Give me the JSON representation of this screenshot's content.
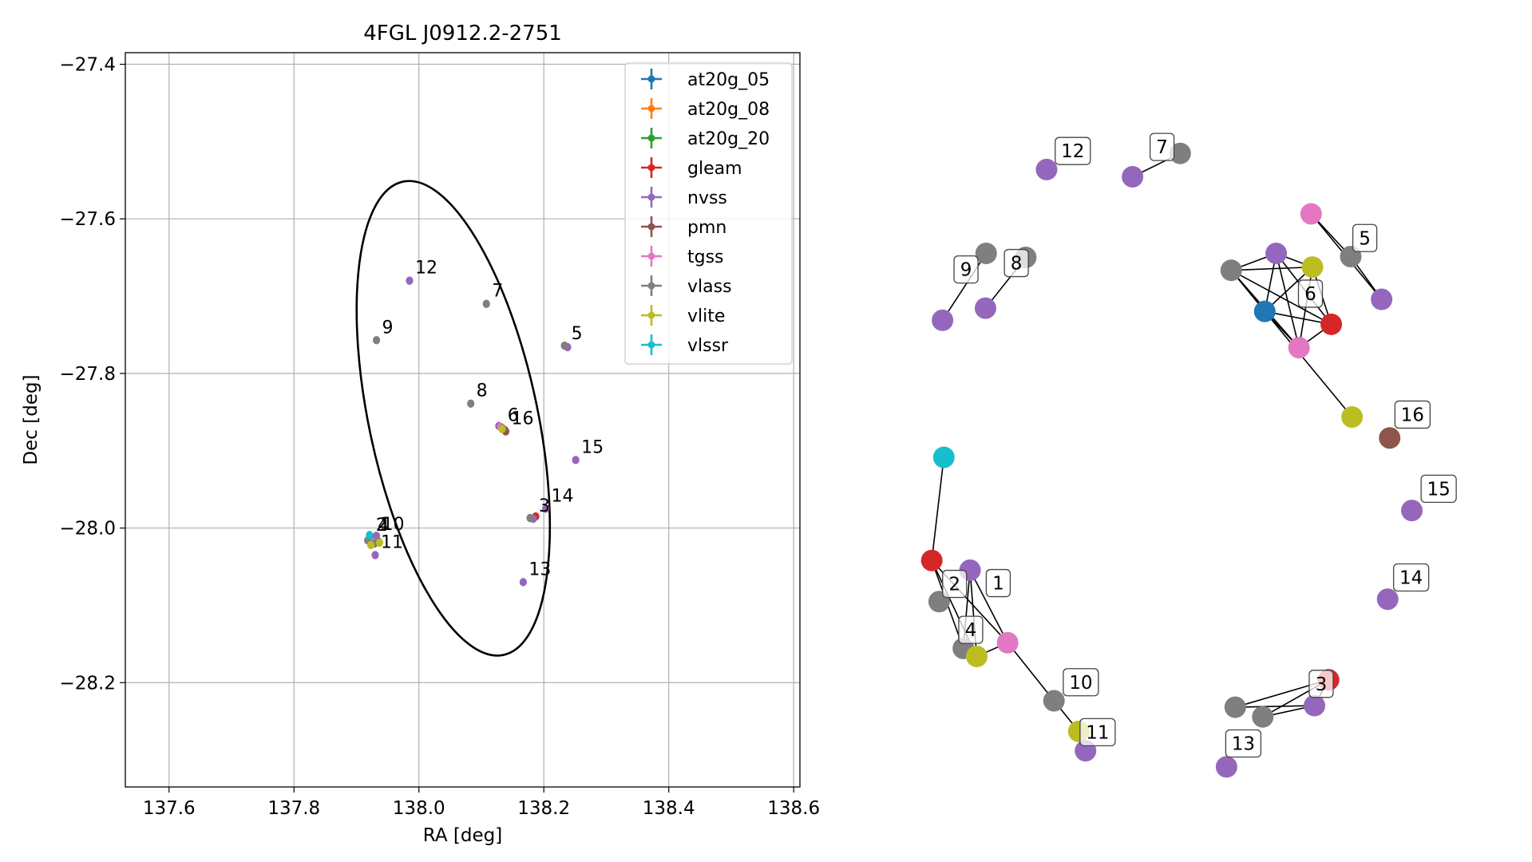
{
  "chart_data": [
    {
      "type": "scatter",
      "title": "4FGL J0912.2-2751",
      "xlabel": "RA [deg]",
      "ylabel": "Dec [deg]",
      "xlim": [
        137.53,
        138.61
      ],
      "ylim": [
        -28.335,
        -27.385
      ],
      "xticks": [
        "137.6",
        "137.8",
        "138.0",
        "138.2",
        "138.4",
        "138.6"
      ],
      "xtick_values": [
        137.6,
        137.8,
        138.0,
        138.2,
        138.4,
        138.6
      ],
      "yticks": [
        "−27.4",
        "−27.6",
        "−27.8",
        "−28.0",
        "−28.2"
      ],
      "ytick_values": [
        -27.4,
        -27.6,
        -27.8,
        -28.0,
        -28.2
      ],
      "grid": true,
      "legend_position": "top-right",
      "ellipse": {
        "center": [
          138.055,
          -27.858
        ],
        "ra_semi_axis": 0.135,
        "dec_semi_axis": 0.313,
        "angle_deg": -12
      },
      "series": [
        {
          "name": "at20g_05",
          "color": "#1f77b4",
          "points": [
            [
              137.923,
              -28.012
            ]
          ]
        },
        {
          "name": "at20g_08",
          "color": "#ff7f0e",
          "points": [
            [
              137.926,
              -28.014
            ]
          ]
        },
        {
          "name": "at20g_20",
          "color": "#2ca02c",
          "points": [
            [
              137.925,
              -28.013
            ]
          ]
        },
        {
          "name": "gleam",
          "color": "#d62728",
          "points": [
            [
              137.927,
              -28.015
            ],
            [
              138.137,
              -27.873
            ],
            [
              138.187,
              -27.985
            ]
          ]
        },
        {
          "name": "nvss",
          "color": "#9467bd",
          "points": [
            [
              137.985,
              -27.68
            ],
            [
              138.251,
              -27.912
            ],
            [
              138.203,
              -27.975
            ],
            [
              138.167,
              -28.07
            ],
            [
              137.93,
              -28.035
            ],
            [
              137.932,
              -28.01
            ],
            [
              138.128,
              -27.868
            ],
            [
              138.238,
              -27.766
            ],
            [
              138.183,
              -27.988
            ]
          ]
        },
        {
          "name": "pmn",
          "color": "#8c564b",
          "points": [
            [
              138.139,
              -27.875
            ]
          ]
        },
        {
          "name": "tgss",
          "color": "#e377c2",
          "points": [
            [
              138.131,
              -27.869
            ],
            [
              137.927,
              -28.018
            ]
          ]
        },
        {
          "name": "vlass",
          "color": "#7f7f7f",
          "points": [
            [
              138.108,
              -27.71
            ],
            [
              137.932,
              -27.757
            ],
            [
              138.083,
              -27.839
            ],
            [
              138.233,
              -27.764
            ],
            [
              137.918,
              -28.016
            ],
            [
              137.929,
              -28.02
            ],
            [
              138.178,
              -27.987
            ],
            [
              138.134,
              -27.871
            ],
            [
              137.935,
              -28.017
            ]
          ]
        },
        {
          "name": "vlite",
          "color": "#bcbd22",
          "points": [
            [
              137.923,
              -28.022
            ],
            [
              138.133,
              -27.872
            ],
            [
              137.937,
              -28.019
            ]
          ]
        },
        {
          "name": "vlssr",
          "color": "#17becf",
          "points": [
            [
              137.921,
              -28.009
            ]
          ]
        }
      ],
      "labels": [
        {
          "text": "12",
          "at": [
            137.985,
            -27.68
          ]
        },
        {
          "text": "7",
          "at": [
            138.108,
            -27.71
          ]
        },
        {
          "text": "9",
          "at": [
            137.932,
            -27.757
          ]
        },
        {
          "text": "5",
          "at": [
            138.235,
            -27.765
          ]
        },
        {
          "text": "8",
          "at": [
            138.083,
            -27.839
          ]
        },
        {
          "text": "6",
          "at": [
            138.133,
            -27.871
          ]
        },
        {
          "text": "16",
          "at": [
            138.139,
            -27.875
          ]
        },
        {
          "text": "15",
          "at": [
            138.251,
            -27.912
          ]
        },
        {
          "text": "14",
          "at": [
            138.203,
            -27.975
          ]
        },
        {
          "text": "3",
          "at": [
            138.183,
            -27.988
          ]
        },
        {
          "text": "2",
          "at": [
            137.922,
            -28.013
          ]
        },
        {
          "text": "4",
          "at": [
            137.925,
            -28.013
          ]
        },
        {
          "text": "1",
          "at": [
            137.928,
            -28.012
          ]
        },
        {
          "text": "10",
          "at": [
            137.932,
            -28.012
          ]
        },
        {
          "text": "11",
          "at": [
            137.93,
            -28.035
          ]
        },
        {
          "text": "13",
          "at": [
            138.167,
            -28.07
          ]
        }
      ]
    },
    {
      "type": "network",
      "nodes": [
        {
          "id": "vlssr",
          "color": "#17becf",
          "pos": [
            0.124,
            0.498
          ]
        },
        {
          "id": "gleam-a",
          "color": "#d62728",
          "pos": [
            0.106,
            0.626
          ]
        },
        {
          "id": "nvss-a",
          "color": "#9467bd",
          "pos": [
            0.163,
            0.638
          ]
        },
        {
          "id": "vlass-a",
          "color": "#7f7f7f",
          "pos": [
            0.117,
            0.677
          ]
        },
        {
          "id": "vlass-b",
          "color": "#7f7f7f",
          "pos": [
            0.153,
            0.735
          ]
        },
        {
          "id": "vlite-a",
          "color": "#bcbd22",
          "pos": [
            0.173,
            0.745
          ]
        },
        {
          "id": "tgss-a",
          "color": "#e377c2",
          "pos": [
            0.219,
            0.728
          ]
        },
        {
          "id": "vlass-c",
          "color": "#7f7f7f",
          "pos": [
            0.288,
            0.8
          ]
        },
        {
          "id": "vlite-b",
          "color": "#bcbd22",
          "pos": [
            0.325,
            0.838
          ]
        },
        {
          "id": "nvss-b",
          "color": "#9467bd",
          "pos": [
            0.335,
            0.862
          ]
        },
        {
          "id": "vlass-d",
          "color": "#7f7f7f",
          "pos": [
            0.187,
            0.245
          ]
        },
        {
          "id": "nvss-c",
          "color": "#9467bd",
          "pos": [
            0.122,
            0.328
          ]
        },
        {
          "id": "vlass-e",
          "color": "#7f7f7f",
          "pos": [
            0.246,
            0.25
          ]
        },
        {
          "id": "nvss-d",
          "color": "#9467bd",
          "pos": [
            0.186,
            0.313
          ]
        },
        {
          "id": "nvss-e",
          "color": "#9467bd",
          "pos": [
            0.277,
            0.141
          ]
        },
        {
          "id": "nvss-f",
          "color": "#9467bd",
          "pos": [
            0.405,
            0.15
          ]
        },
        {
          "id": "vlass-f",
          "color": "#7f7f7f",
          "pos": [
            0.476,
            0.121
          ]
        },
        {
          "id": "tgss-b",
          "color": "#e377c2",
          "pos": [
            0.671,
            0.196
          ]
        },
        {
          "id": "vlass-g",
          "color": "#7f7f7f",
          "pos": [
            0.73,
            0.249
          ]
        },
        {
          "id": "nvss-g",
          "color": "#9467bd",
          "pos": [
            0.776,
            0.302
          ]
        },
        {
          "id": "vlass-h",
          "color": "#7f7f7f",
          "pos": [
            0.552,
            0.266
          ]
        },
        {
          "id": "nvss-h",
          "color": "#9467bd",
          "pos": [
            0.619,
            0.245
          ]
        },
        {
          "id": "vlite-c",
          "color": "#bcbd22",
          "pos": [
            0.673,
            0.262
          ]
        },
        {
          "id": "at20g-a",
          "color": "#1f77b4",
          "pos": [
            0.602,
            0.317
          ]
        },
        {
          "id": "gleam-b",
          "color": "#d62728",
          "pos": [
            0.701,
            0.333
          ]
        },
        {
          "id": "tgss-c",
          "color": "#e377c2",
          "pos": [
            0.653,
            0.362
          ]
        },
        {
          "id": "vlite-d",
          "color": "#bcbd22",
          "pos": [
            0.732,
            0.448
          ]
        },
        {
          "id": "pmn",
          "color": "#8c564b",
          "pos": [
            0.788,
            0.474
          ]
        },
        {
          "id": "nvss-i",
          "color": "#9467bd",
          "pos": [
            0.821,
            0.564
          ]
        },
        {
          "id": "nvss-j",
          "color": "#9467bd",
          "pos": [
            0.785,
            0.674
          ]
        },
        {
          "id": "gleam-c",
          "color": "#d62728",
          "pos": [
            0.697,
            0.774
          ]
        },
        {
          "id": "nvss-k",
          "color": "#9467bd",
          "pos": [
            0.676,
            0.806
          ]
        },
        {
          "id": "vlass-i",
          "color": "#7f7f7f",
          "pos": [
            0.558,
            0.808
          ]
        },
        {
          "id": "vlass-j",
          "color": "#7f7f7f",
          "pos": [
            0.599,
            0.82
          ]
        },
        {
          "id": "nvss-l",
          "color": "#9467bd",
          "pos": [
            0.545,
            0.882
          ]
        }
      ],
      "edges": [
        [
          "vlssr",
          "gleam-a"
        ],
        [
          "gleam-a",
          "vlite-a"
        ],
        [
          "gleam-a",
          "tgss-a"
        ],
        [
          "gleam-a",
          "vlass-b"
        ],
        [
          "nvss-a",
          "vlite-a"
        ],
        [
          "nvss-a",
          "tgss-a"
        ],
        [
          "nvss-a",
          "vlass-b"
        ],
        [
          "vlite-a",
          "tgss-a"
        ],
        [
          "vlite-a",
          "vlass-b"
        ],
        [
          "tgss-a",
          "vlass-c"
        ],
        [
          "vlass-c",
          "vlite-b"
        ],
        [
          "vlass-d",
          "nvss-c"
        ],
        [
          "vlass-e",
          "nvss-d"
        ],
        [
          "nvss-f",
          "vlass-f"
        ],
        [
          "tgss-b",
          "vlass-g"
        ],
        [
          "tgss-b",
          "nvss-g"
        ],
        [
          "vlass-g",
          "nvss-g"
        ],
        [
          "vlass-h",
          "nvss-h"
        ],
        [
          "vlass-h",
          "vlite-c"
        ],
        [
          "vlass-h",
          "at20g-a"
        ],
        [
          "vlass-h",
          "gleam-b"
        ],
        [
          "vlass-h",
          "tgss-c"
        ],
        [
          "nvss-h",
          "vlite-c"
        ],
        [
          "nvss-h",
          "at20g-a"
        ],
        [
          "nvss-h",
          "gleam-b"
        ],
        [
          "nvss-h",
          "tgss-c"
        ],
        [
          "vlite-c",
          "at20g-a"
        ],
        [
          "vlite-c",
          "gleam-b"
        ],
        [
          "vlite-c",
          "tgss-c"
        ],
        [
          "at20g-a",
          "gleam-b"
        ],
        [
          "at20g-a",
          "tgss-c"
        ],
        [
          "gleam-b",
          "tgss-c"
        ],
        [
          "at20g-a",
          "vlite-d"
        ],
        [
          "gleam-c",
          "vlass-i"
        ],
        [
          "gleam-c",
          "vlass-j"
        ],
        [
          "gleam-c",
          "nvss-k"
        ],
        [
          "vlass-i",
          "nvss-k"
        ],
        [
          "vlass-j",
          "nvss-k"
        ]
      ],
      "labels": [
        {
          "text": "12",
          "pos": [
            0.316,
            0.118
          ]
        },
        {
          "text": "7",
          "pos": [
            0.449,
            0.113
          ]
        },
        {
          "text": "9",
          "pos": [
            0.157,
            0.265
          ]
        },
        {
          "text": "8",
          "pos": [
            0.232,
            0.257
          ]
        },
        {
          "text": "5",
          "pos": [
            0.751,
            0.226
          ]
        },
        {
          "text": "6",
          "pos": [
            0.67,
            0.295
          ]
        },
        {
          "text": "16",
          "pos": [
            0.822,
            0.445
          ]
        },
        {
          "text": "15",
          "pos": [
            0.861,
            0.537
          ]
        },
        {
          "text": "14",
          "pos": [
            0.82,
            0.647
          ]
        },
        {
          "text": "2",
          "pos": [
            0.14,
            0.655
          ]
        },
        {
          "text": "1",
          "pos": [
            0.205,
            0.654
          ]
        },
        {
          "text": "4",
          "pos": [
            0.164,
            0.712
          ]
        },
        {
          "text": "10",
          "pos": [
            0.328,
            0.777
          ]
        },
        {
          "text": "11",
          "pos": [
            0.353,
            0.839
          ]
        },
        {
          "text": "3",
          "pos": [
            0.686,
            0.779
          ]
        },
        {
          "text": "13",
          "pos": [
            0.57,
            0.853
          ]
        }
      ]
    }
  ]
}
